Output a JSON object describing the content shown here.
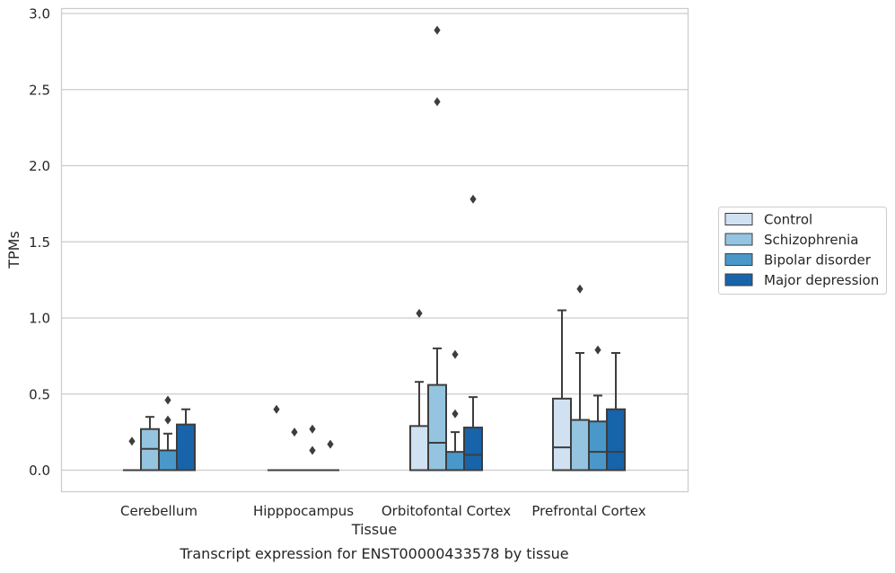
{
  "chart_data": {
    "type": "box",
    "caption": "Transcript expression for ENST00000433578 by tissue",
    "xlabel": "Tissue",
    "ylabel": "TPMs",
    "ylim": [
      -0.14,
      3.04
    ],
    "yticks": [
      0.0,
      0.5,
      1.0,
      1.5,
      2.0,
      2.5,
      3.0
    ],
    "ytick_labels": [
      "0.0",
      "0.5",
      "1.0",
      "1.5",
      "2.0",
      "2.5",
      "3.0"
    ],
    "grid": "horizontal",
    "legend_position": "right",
    "categories": [
      "Cerebellum",
      "Hipppocampus",
      "Orbitofontal Cortex",
      "Prefrontal Cortex"
    ],
    "series": [
      {
        "name": "Control",
        "color": "#d0e1f2",
        "boxes": [
          {
            "q1": 0.0,
            "median": 0.0,
            "q3": 0.0,
            "whisker_low": 0.0,
            "whisker_high": 0.0,
            "outliers": [
              0.19
            ]
          },
          {
            "q1": 0.0,
            "median": 0.0,
            "q3": 0.0,
            "whisker_low": 0.0,
            "whisker_high": 0.0,
            "outliers": [
              0.4
            ]
          },
          {
            "q1": 0.0,
            "median": 0.0,
            "q3": 0.29,
            "whisker_low": 0.0,
            "whisker_high": 0.58,
            "outliers": [
              1.03
            ]
          },
          {
            "q1": 0.0,
            "median": 0.15,
            "q3": 0.47,
            "whisker_low": 0.0,
            "whisker_high": 1.05,
            "outliers": []
          }
        ]
      },
      {
        "name": "Schizophrenia",
        "color": "#94c4df",
        "boxes": [
          {
            "q1": 0.0,
            "median": 0.14,
            "q3": 0.27,
            "whisker_low": 0.0,
            "whisker_high": 0.35,
            "outliers": []
          },
          {
            "q1": 0.0,
            "median": 0.0,
            "q3": 0.0,
            "whisker_low": 0.0,
            "whisker_high": 0.0,
            "outliers": [
              0.25
            ]
          },
          {
            "q1": 0.0,
            "median": 0.18,
            "q3": 0.56,
            "whisker_low": 0.0,
            "whisker_high": 0.8,
            "outliers": [
              2.89,
              2.42
            ]
          },
          {
            "q1": 0.0,
            "median": 0.0,
            "q3": 0.33,
            "whisker_low": 0.0,
            "whisker_high": 0.77,
            "outliers": [
              1.19
            ]
          }
        ]
      },
      {
        "name": "Bipolar disorder",
        "color": "#4a98c9",
        "boxes": [
          {
            "q1": 0.0,
            "median": 0.13,
            "q3": 0.13,
            "whisker_low": 0.0,
            "whisker_high": 0.24,
            "outliers": [
              0.46,
              0.33
            ]
          },
          {
            "q1": 0.0,
            "median": 0.0,
            "q3": 0.0,
            "whisker_low": 0.0,
            "whisker_high": 0.0,
            "outliers": [
              0.27,
              0.13
            ]
          },
          {
            "q1": 0.0,
            "median": 0.0,
            "q3": 0.12,
            "whisker_low": 0.0,
            "whisker_high": 0.25,
            "outliers": [
              0.76,
              0.37
            ]
          },
          {
            "q1": 0.0,
            "median": 0.12,
            "q3": 0.32,
            "whisker_low": 0.0,
            "whisker_high": 0.49,
            "outliers": [
              0.79
            ]
          }
        ]
      },
      {
        "name": "Major depression",
        "color": "#1764ab",
        "boxes": [
          {
            "q1": 0.0,
            "median": 0.0,
            "q3": 0.3,
            "whisker_low": 0.0,
            "whisker_high": 0.4,
            "outliers": []
          },
          {
            "q1": 0.0,
            "median": 0.0,
            "q3": 0.0,
            "whisker_low": 0.0,
            "whisker_high": 0.0,
            "outliers": [
              0.17
            ]
          },
          {
            "q1": 0.0,
            "median": 0.1,
            "q3": 0.28,
            "whisker_low": 0.0,
            "whisker_high": 0.48,
            "outliers": [
              1.78
            ]
          },
          {
            "q1": 0.0,
            "median": 0.12,
            "q3": 0.4,
            "whisker_low": 0.0,
            "whisker_high": 0.77,
            "outliers": []
          }
        ]
      }
    ]
  }
}
